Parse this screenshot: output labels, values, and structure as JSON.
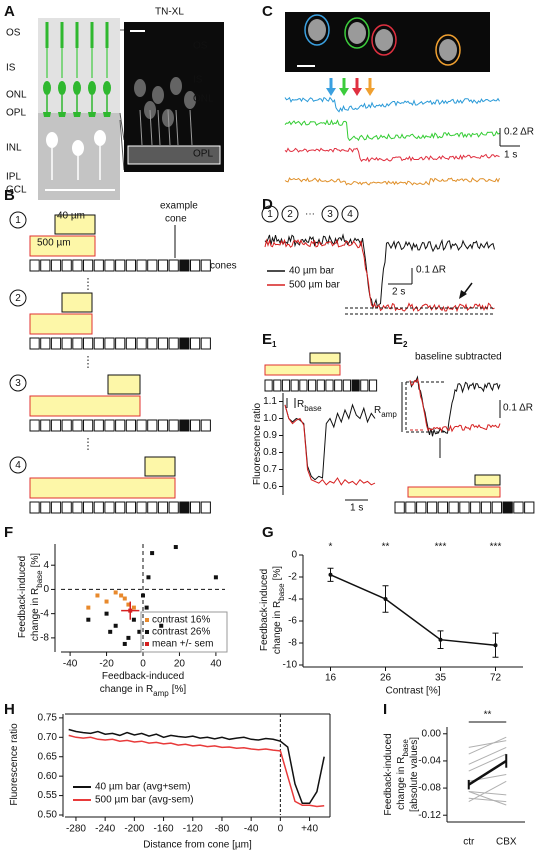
{
  "panels": [
    "A",
    "B",
    "C",
    "D",
    "F",
    "G",
    "H",
    "I"
  ],
  "A": {
    "layers": [
      "OS",
      "IS",
      "ONL",
      "OPL",
      "INL",
      "IPL",
      "GCL"
    ],
    "title": "TN-XL",
    "image_layers": [
      "OS",
      "IS",
      "ONL",
      "OPL"
    ]
  },
  "B": {
    "bar_small": "40 µm",
    "bar_large": "500 µm",
    "example": [
      "example",
      "cone"
    ],
    "cones": "cones",
    "steps": [
      "1",
      "2",
      "3",
      "4"
    ]
  },
  "C": {
    "scale_y": "0.2 ΔR",
    "scale_x": "1 s"
  },
  "D": {
    "steps": [
      "1",
      "2",
      "···",
      "3",
      "4"
    ],
    "legend": [
      "40 µm bar",
      "500 µm bar"
    ],
    "scale_y": "0.1 ΔR",
    "scale_x": "2 s"
  },
  "E": {
    "panels": [
      [
        "E",
        "1"
      ],
      [
        "E",
        "2"
      ]
    ],
    "r_base": [
      "R",
      "base"
    ],
    "r_amp": [
      "R",
      "amp"
    ],
    "baseline": "baseline subtracted",
    "scale_x": "1 s",
    "scale_y": "0.1 ΔR"
  },
  "chart_data": [
    {
      "type": "line",
      "ylabel": "Fluorescence ratio",
      "x": [
        0,
        0.15,
        0.3,
        0.45,
        0.6,
        0.75,
        0.9,
        1.05,
        1.2,
        1.35,
        1.5,
        1.65,
        1.8,
        1.95,
        2.1,
        2.25,
        2.4,
        2.55,
        2.7,
        2.85,
        3.0,
        3.15,
        3.3,
        3.45,
        3.6
      ],
      "xlim": [
        0,
        3.6
      ],
      "ylim": [
        0.55,
        1.15
      ],
      "yticks": [
        0.6,
        0.7,
        0.8,
        0.9,
        {
          "value": 1,
          "label": "1.0"
        },
        1.1
      ],
      "series": [
        {
          "color": "#111111",
          "values": [
            1.08,
            1.0,
            0.98,
            1.0,
            0.99,
            0.97,
            0.72,
            0.66,
            0.64,
            0.66,
            0.65,
            0.97,
            1.0,
            0.95,
            1.03,
            0.98,
            1.05,
            1.0,
            1.08,
            1.02,
            1.0,
            1.06,
            0.98,
            1.03,
            1.0
          ]
        },
        {
          "color": "#d62020",
          "values": [
            1.08,
            1.0,
            0.97,
            0.99,
            1.0,
            0.96,
            0.7,
            0.64,
            0.63,
            0.62,
            0.64,
            0.61,
            0.63,
            0.62,
            0.65,
            0.61,
            0.64,
            0.62,
            0.63,
            0.61,
            0.64,
            0.62,
            0.63,
            0.61,
            0.62
          ]
        }
      ]
    },
    {
      "type": "scatter",
      "ylabel": [
        "Feedback-induced",
        "change in R",
        "base",
        "[%]"
      ],
      "xlabel": [
        "Feedback-induced",
        "change in R",
        "amp",
        "[%]"
      ],
      "xlim": [
        -45,
        45
      ],
      "ylim": [
        -10,
        7.5
      ],
      "xticks": [
        -40,
        -20,
        0,
        20,
        40
      ],
      "yticks": [
        4,
        0,
        -4,
        -8
      ],
      "series": [
        {
          "name": "contrast 16%",
          "color": "#e8892c",
          "x": [
            -25,
            -20,
            -15,
            -10,
            -5,
            -30,
            -8,
            -12
          ],
          "values": [
            -1,
            -2,
            -0.5,
            -1.5,
            -3,
            -3,
            -2.5,
            -1
          ]
        },
        {
          "name": "contrast 26%",
          "color": "#111111",
          "x": [
            18,
            5,
            40,
            -20,
            -15,
            -8,
            -2,
            -5,
            -30,
            -10,
            2,
            10,
            0,
            3,
            -18
          ],
          "values": [
            7,
            6,
            2,
            -4,
            -6,
            -8,
            -7,
            -5,
            -5,
            -9,
            -3,
            -6,
            -1,
            2,
            -7
          ]
        },
        {
          "name": "mean +/- sem",
          "color": "#d62020",
          "x": [
            -7
          ],
          "values": [
            -3.5
          ],
          "xerr": [
            5
          ],
          "yerr": [
            1.5
          ]
        }
      ]
    },
    {
      "type": "errorline",
      "ylabel": [
        "Feedback-induced",
        "change in R",
        "base",
        "[%]"
      ],
      "xlabel": "Contrast [%]",
      "categories": [
        "16",
        "26",
        "35",
        "72"
      ],
      "values": [
        -1.8,
        -4,
        -7.7,
        -8.2
      ],
      "errors": [
        0.6,
        1.2,
        0.8,
        1.1
      ],
      "annotations": [
        "*",
        "**",
        "***",
        "***"
      ],
      "color": "#111111",
      "ylim": [
        -10,
        0
      ],
      "yticks": [
        0,
        -2,
        -4,
        -6,
        -8,
        -10
      ]
    },
    {
      "type": "line",
      "ylabel": "Fluorescence ratio",
      "xlabel": "Distance from cone [µm]",
      "x": [
        -290,
        -280,
        -270,
        -260,
        -250,
        -240,
        -230,
        -220,
        -210,
        -200,
        -190,
        -180,
        -170,
        -160,
        -150,
        -140,
        -130,
        -120,
        -110,
        -100,
        -90,
        -80,
        -70,
        -60,
        -50,
        -40,
        -30,
        -20,
        -10,
        0,
        10,
        20,
        30,
        40,
        50,
        60
      ],
      "xlim": [
        -295,
        68
      ],
      "ylim": [
        0.5,
        0.76
      ],
      "xticks": [
        -280,
        -240,
        -200,
        -160,
        -120,
        -80,
        -40,
        0,
        {
          "value": 40,
          "label": "+40"
        }
      ],
      "yticks": [
        {
          "value": 0.5,
          "label": "0.50"
        },
        0.55,
        {
          "value": 0.6,
          "label": "0.60"
        },
        0.65,
        {
          "value": 0.7,
          "label": "0.70"
        },
        0.75
      ],
      "series": [
        {
          "name": "40 µm bar (avg+sem)",
          "color": "#111111",
          "values": [
            0.72,
            0.715,
            0.712,
            0.71,
            0.715,
            0.708,
            0.71,
            0.705,
            0.712,
            0.706,
            0.71,
            0.703,
            0.708,
            0.7,
            0.705,
            0.702,
            0.7,
            0.703,
            0.698,
            0.7,
            0.696,
            0.7,
            0.695,
            0.698,
            0.7,
            0.695,
            0.693,
            0.697,
            0.695,
            0.69,
            0.675,
            0.58,
            0.53,
            0.53,
            0.56,
            0.65
          ]
        },
        {
          "name": "500 µm bar (avg-sem)",
          "color": "#e83a3a",
          "values": [
            0.705,
            0.7,
            0.698,
            0.7,
            0.695,
            0.693,
            0.695,
            0.69,
            0.692,
            0.688,
            0.69,
            0.685,
            0.687,
            0.683,
            0.685,
            0.68,
            0.682,
            0.678,
            0.68,
            0.676,
            0.678,
            0.674,
            0.675,
            0.672,
            0.673,
            0.67,
            0.668,
            0.67,
            0.667,
            0.665,
            0.6,
            0.535,
            0.525,
            0.525,
            0.522,
            0.524
          ]
        }
      ]
    },
    {
      "type": "paired",
      "ylabel": [
        "Feedback-induced",
        "change in R",
        "base",
        "[absolute values]"
      ],
      "categories": [
        "ctr",
        "CBX"
      ],
      "annotation": "**",
      "cells": [
        [
          -0.02,
          -0.01
        ],
        [
          -0.03,
          -0.005
        ],
        [
          -0.045,
          -0.02
        ],
        [
          -0.055,
          -0.03
        ],
        [
          -0.07,
          -0.06
        ],
        [
          -0.085,
          -0.09
        ],
        [
          -0.1,
          -0.07
        ],
        [
          -0.085,
          -0.105
        ],
        [
          -0.095,
          -0.1
        ]
      ],
      "mean": {
        "values": [
          -0.075,
          -0.04
        ],
        "errors": [
          0.007,
          0.01
        ],
        "color": "#111111"
      },
      "ylim": [
        -0.13,
        0.01
      ],
      "yticks": [
        {
          "value": 0,
          "label": "0.00"
        },
        -0.04,
        -0.08,
        -0.12
      ]
    }
  ]
}
